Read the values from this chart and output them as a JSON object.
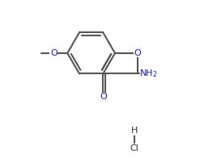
{
  "bg_color": "#ffffff",
  "bond_color": "#555555",
  "o_color": "#1a1acc",
  "n_color": "#1a1acc",
  "text_color": "#333333",
  "lw": 1.5,
  "fs": 8.0,
  "xlim": [
    -1.5,
    9.5
  ],
  "ylim": [
    -3.5,
    7.5
  ],
  "figsize": [
    2.68,
    1.96
  ],
  "dpi": 100
}
